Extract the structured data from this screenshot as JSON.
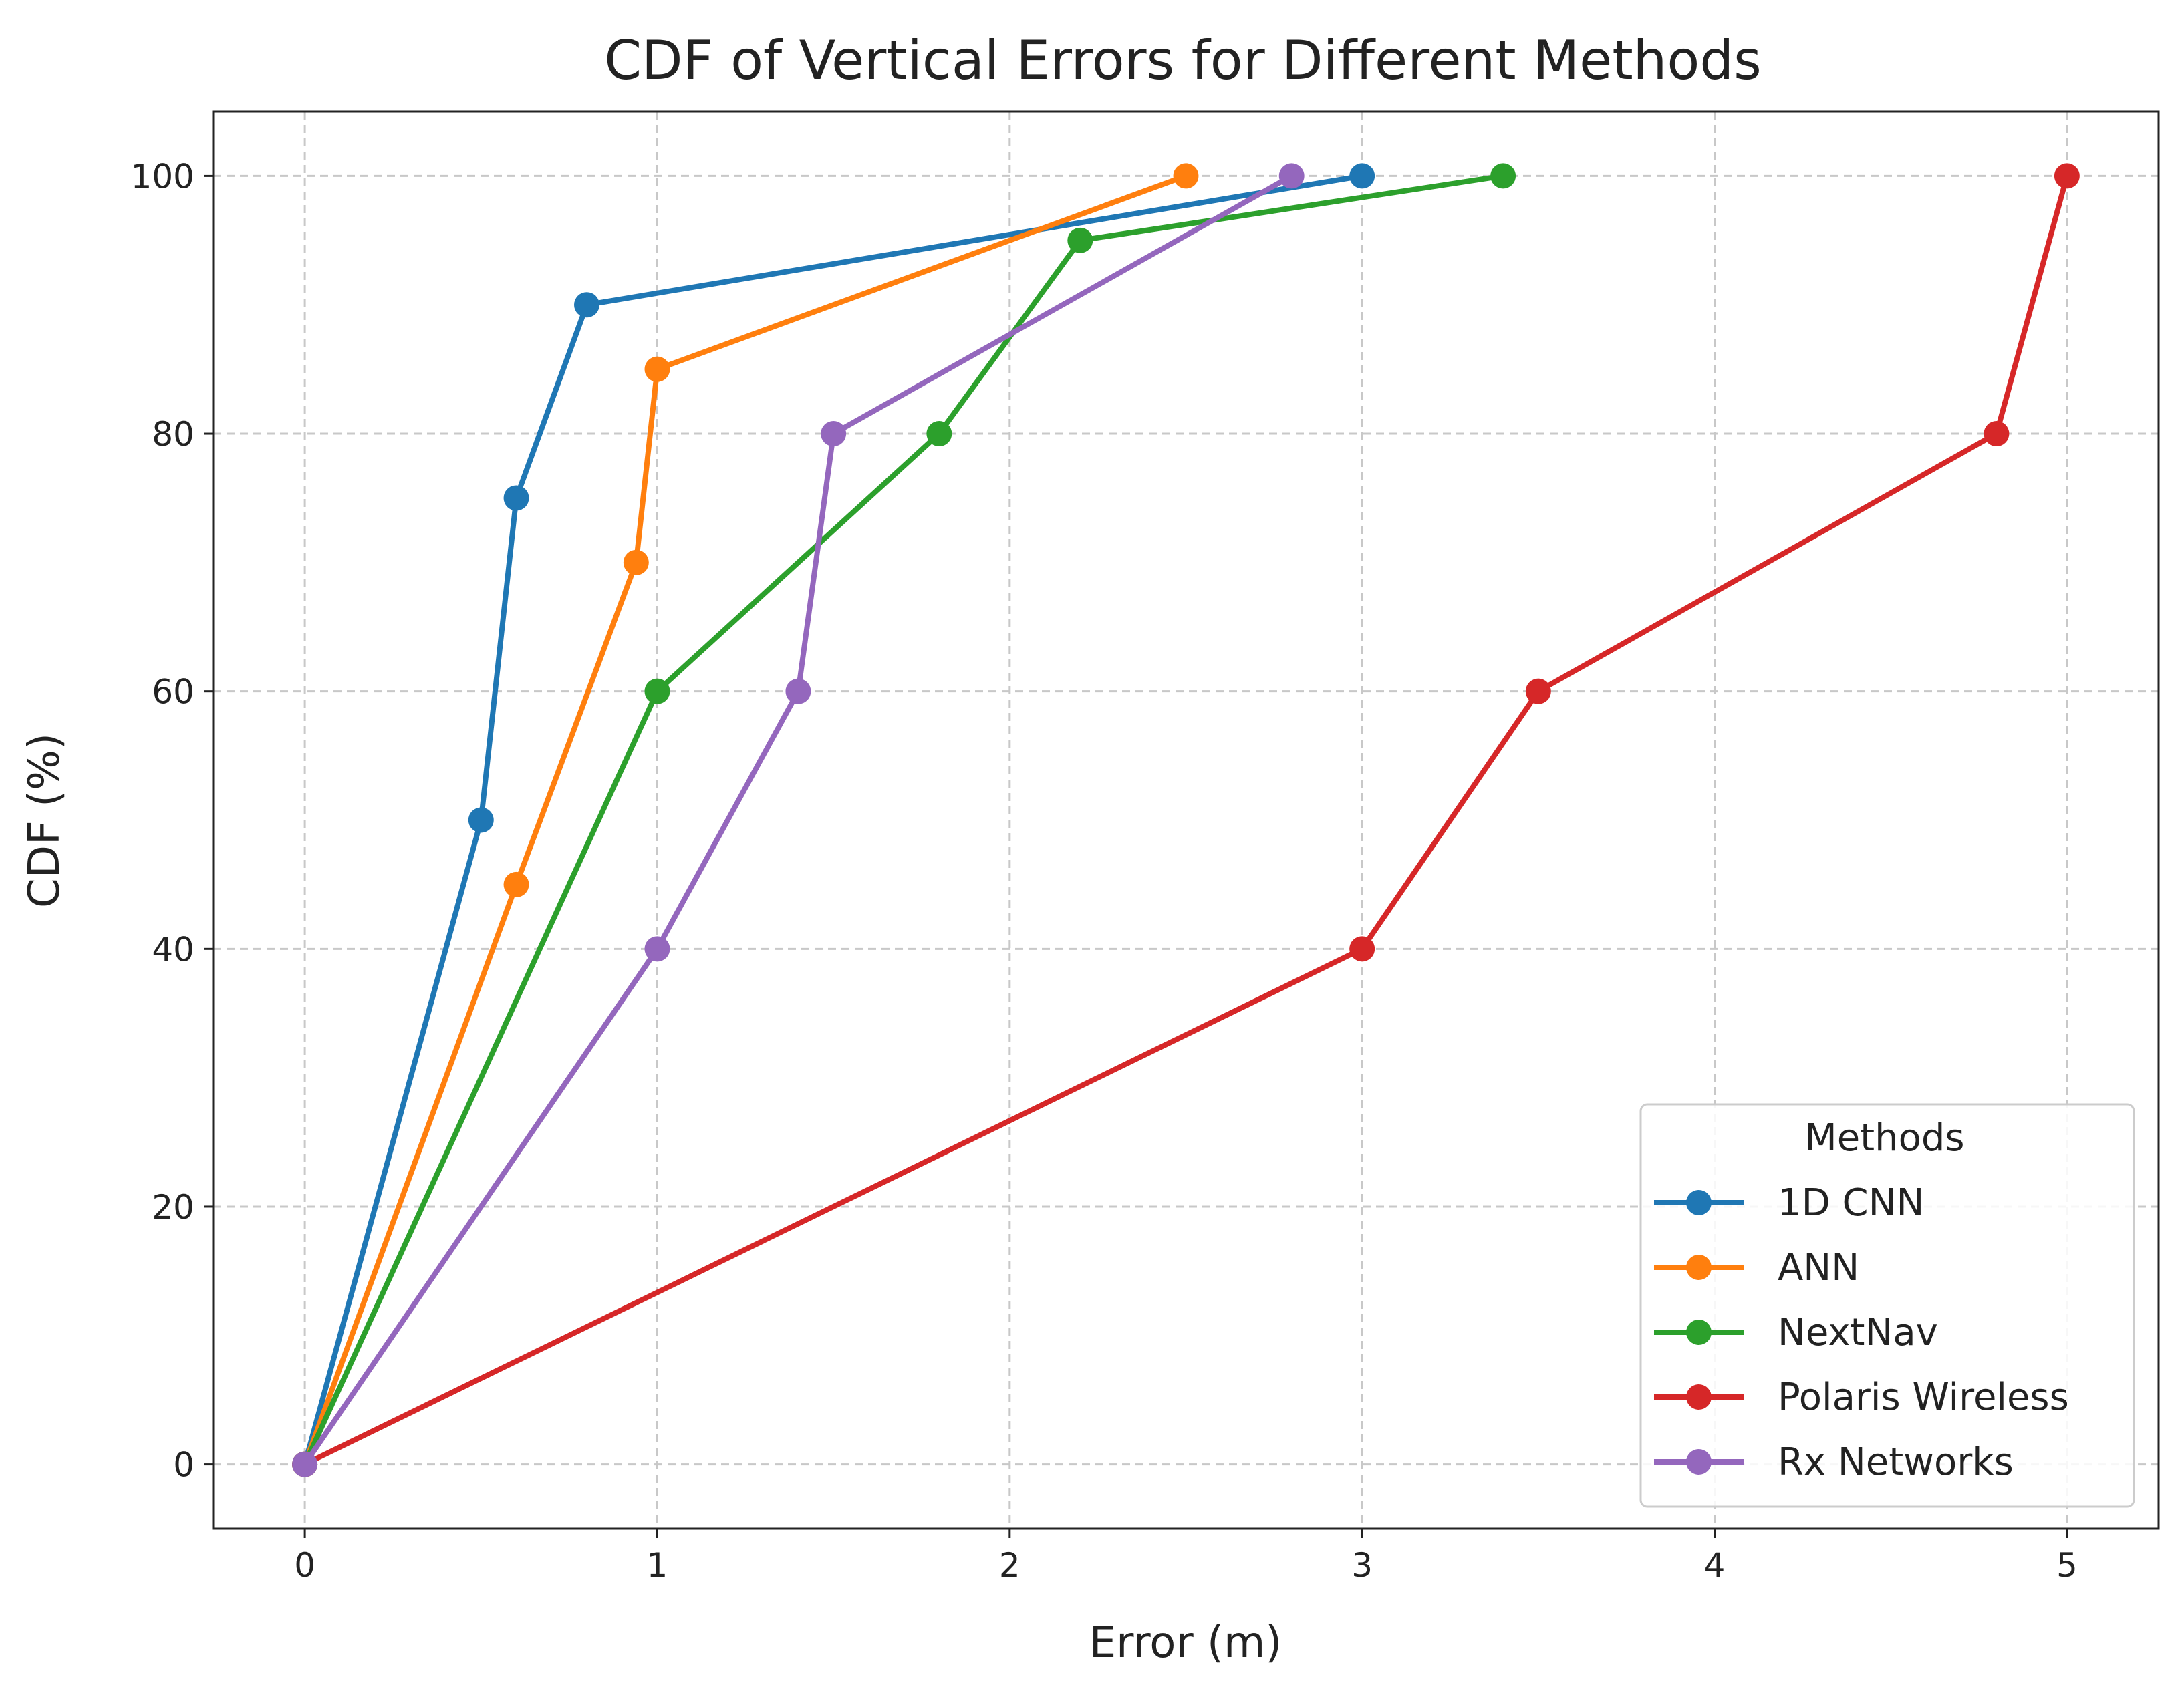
{
  "chart_data": {
    "type": "line",
    "title": "CDF of Vertical Errors for Different Methods",
    "xlabel": "Error (m)",
    "ylabel": "CDF (%)",
    "xlim": [
      -0.26,
      5.26
    ],
    "ylim": [
      -5,
      105
    ],
    "xticks": [
      0,
      1,
      2,
      3,
      4,
      5
    ],
    "yticks": [
      0,
      20,
      40,
      60,
      80,
      100
    ],
    "grid": true,
    "legend": {
      "title": "Methods",
      "placement": "bottom-right"
    },
    "series": [
      {
        "name": "1D CNN",
        "color": "#1f77b4",
        "x": [
          0,
          0.5,
          0.6,
          0.8,
          3.0
        ],
        "y": [
          0,
          50,
          75,
          90,
          100
        ]
      },
      {
        "name": "ANN",
        "color": "#ff7f0e",
        "x": [
          0,
          0.6,
          0.94,
          1.0,
          2.5
        ],
        "y": [
          0,
          45,
          70,
          85,
          100
        ]
      },
      {
        "name": "NextNav",
        "color": "#2ca02c",
        "x": [
          0,
          1.0,
          1.8,
          2.2,
          3.4
        ],
        "y": [
          0,
          60,
          80,
          95,
          100
        ]
      },
      {
        "name": "Polaris Wireless",
        "color": "#d62728",
        "x": [
          0,
          3.0,
          3.5,
          4.8,
          5.0
        ],
        "y": [
          0,
          40,
          60,
          80,
          100
        ]
      },
      {
        "name": "Rx Networks",
        "color": "#9467bd",
        "x": [
          0,
          1.0,
          1.4,
          1.5,
          2.8
        ],
        "y": [
          0,
          40,
          60,
          80,
          100
        ]
      }
    ]
  }
}
